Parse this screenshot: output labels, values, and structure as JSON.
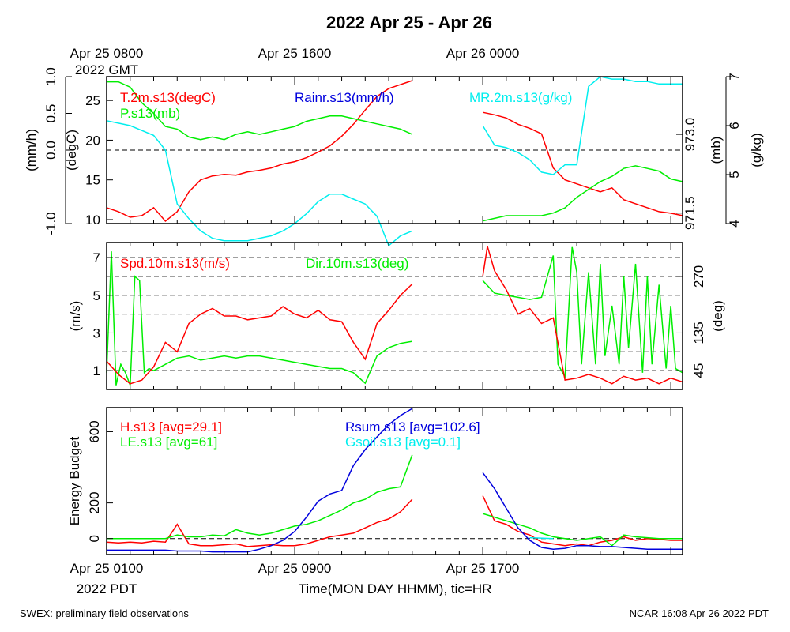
{
  "title": "2022 Apr 25 - Apr 26",
  "footer": {
    "left": "SWEX: preliminary field observations",
    "right": "NCAR 16:08 Apr 26 2022 PDT"
  },
  "colors": {
    "red": "#ff0000",
    "green": "#00ee00",
    "blue": "#0000dd",
    "cyan": "#00eeee",
    "black": "#000000"
  },
  "top_time_labels": [
    {
      "line1": "Apr 25 0800",
      "line2": "2022 GMT",
      "hour": 0
    },
    {
      "line1": "Apr 25 1600",
      "line2": "",
      "hour": 8
    },
    {
      "line1": "Apr 26 0000",
      "line2": "",
      "hour": 16
    }
  ],
  "bottom_time_labels": [
    {
      "line1": "Apr 25 0100",
      "line2": "2022 PDT",
      "hour": 0
    },
    {
      "line1": "Apr 25 0900",
      "line2": "",
      "hour": 8
    },
    {
      "line1": "Apr 25 1700",
      "line2": "",
      "hour": 16
    }
  ],
  "xlabel": "Time(MON DAY HHMM), tic=HR",
  "chart_data": [
    {
      "type": "line",
      "panel": "met",
      "xlim": [
        0,
        24.5
      ],
      "axes": {
        "rain": {
          "label": "(mm/h)",
          "ylim": [
            -1.0,
            1.0
          ],
          "ticks": [
            "-1.0",
            "0.0",
            "0.5",
            "1.0"
          ],
          "tick_values": [
            -1.0,
            0.0,
            0.5,
            1.0
          ]
        },
        "temp": {
          "label": "(degC)",
          "ylim": [
            9.5,
            28
          ],
          "ticks": [
            "10",
            "15",
            "20",
            "25"
          ],
          "tick_values": [
            10,
            15,
            20,
            25
          ]
        },
        "pres": {
          "label": "(mb)",
          "ylim": [
            971.3,
            974.1
          ],
          "ticks": [
            "971.5",
            "973.0"
          ],
          "tick_values": [
            971.5,
            973.0
          ]
        },
        "mr": {
          "label": "(g/kg)",
          "ylim": [
            4,
            7
          ],
          "ticks": [
            "4",
            "5",
            "6",
            "7"
          ],
          "tick_values": [
            4,
            5,
            6,
            7
          ]
        }
      },
      "series": [
        {
          "name": "T.2m.s13(degC)",
          "axis": "temp",
          "color": "#ff0000",
          "x": [
            0,
            0.5,
            1,
            1.5,
            2,
            2.5,
            3,
            3.5,
            4,
            4.5,
            5,
            5.5,
            6,
            6.5,
            7,
            7.5,
            8,
            8.5,
            9,
            9.5,
            10,
            10.5,
            11,
            11.5,
            12,
            12.5,
            13,
            16,
            16.5,
            17,
            17.5,
            18,
            18.5,
            19,
            19.5,
            20,
            20.5,
            21,
            21.5,
            22,
            22.5,
            23,
            23.5,
            24,
            24.5
          ],
          "y": [
            11.5,
            11,
            10.3,
            10.5,
            11.5,
            9.8,
            11,
            13.5,
            15,
            15.5,
            15.7,
            15.6,
            16,
            16.2,
            16.5,
            17,
            17.3,
            17.8,
            18.5,
            19.3,
            20.5,
            22,
            23.8,
            25.5,
            26.5,
            27,
            27.5,
            23.5,
            23.2,
            22.8,
            22,
            21.5,
            20.8,
            16.5,
            15,
            14.5,
            14,
            13.5,
            14,
            12.5,
            12,
            11.5,
            11,
            10.8,
            10.5
          ]
        },
        {
          "name": "P.s13(mb)",
          "axis": "pres",
          "color": "#00ee00",
          "x": [
            0,
            0.5,
            1,
            1.5,
            2,
            2.5,
            3,
            3.5,
            4,
            4.5,
            5,
            5.5,
            6,
            6.5,
            7,
            7.5,
            8,
            8.5,
            9,
            9.5,
            10,
            10.5,
            11,
            11.5,
            12,
            12.5,
            13,
            16,
            16.5,
            17,
            17.5,
            18,
            18.5,
            19,
            19.5,
            20,
            20.5,
            21,
            21.5,
            22,
            22.5,
            23,
            23.5,
            24,
            24.5
          ],
          "y": [
            974.0,
            974.0,
            973.9,
            973.6,
            973.4,
            973.15,
            973.1,
            972.95,
            972.9,
            972.95,
            972.9,
            973.0,
            973.05,
            973.0,
            973.05,
            973.1,
            973.15,
            973.25,
            973.3,
            973.35,
            973.35,
            973.3,
            973.25,
            973.2,
            973.15,
            973.1,
            973.0,
            971.35,
            971.4,
            971.45,
            971.45,
            971.45,
            971.45,
            971.5,
            971.6,
            971.8,
            971.95,
            972.1,
            972.2,
            972.35,
            972.4,
            972.35,
            972.3,
            972.15,
            972.1
          ]
        },
        {
          "name": "Rainr.s13(mm/h)",
          "axis": "rain",
          "color": "#0000dd",
          "x": [
            0,
            13,
            16,
            24.5
          ],
          "y": [
            0,
            0,
            0,
            0
          ]
        },
        {
          "name": "MR.2m.s13(g/kg)",
          "axis": "mr",
          "color": "#00eeee",
          "x": [
            0,
            0.5,
            1,
            1.5,
            2,
            2.5,
            3,
            3.5,
            4,
            4.5,
            5,
            5.5,
            6,
            6.5,
            7,
            7.5,
            8,
            8.5,
            9,
            9.5,
            10,
            10.5,
            11,
            11.5,
            12,
            12.5,
            13,
            16,
            16.5,
            17,
            17.5,
            18,
            18.5,
            19,
            19.5,
            20,
            20.5,
            21,
            21.5,
            22,
            22.5,
            23,
            23.5,
            24,
            24.5
          ],
          "y": [
            6.1,
            6.05,
            6.0,
            5.9,
            5.8,
            5.5,
            4.4,
            4.1,
            3.85,
            3.7,
            3.65,
            3.65,
            3.65,
            3.7,
            3.75,
            3.85,
            4.0,
            4.2,
            4.45,
            4.6,
            4.6,
            4.5,
            4.4,
            4.15,
            3.55,
            3.75,
            3.85,
            6.0,
            5.6,
            5.55,
            5.45,
            5.3,
            5.05,
            5.0,
            5.2,
            5.2,
            6.8,
            7.0,
            6.95,
            6.95,
            6.9,
            6.9,
            6.85,
            6.85,
            6.85
          ]
        }
      ]
    },
    {
      "type": "line",
      "panel": "wind",
      "xlim": [
        0,
        24.5
      ],
      "axes": {
        "spd": {
          "label": "(m/s)",
          "ylim": [
            0,
            7.8
          ],
          "ticks": [
            "1",
            "3",
            "5",
            "7"
          ],
          "tick_values": [
            1,
            3,
            5,
            7
          ]
        },
        "dir": {
          "label": "(deg)",
          "ylim": [
            0,
            351
          ],
          "ticks": [
            "45",
            "135",
            "270"
          ],
          "tick_values": [
            45,
            135,
            270
          ]
        }
      },
      "series": [
        {
          "name": "Spd.10m.s13(m/s)",
          "axis": "spd",
          "color": "#ff0000",
          "x": [
            0,
            0.5,
            1,
            1.5,
            2,
            2.5,
            3,
            3.5,
            4,
            4.5,
            5,
            5.5,
            6,
            6.5,
            7,
            7.5,
            8,
            8.5,
            9,
            9.5,
            10,
            10.5,
            11,
            11.5,
            12,
            12.5,
            13,
            16,
            16.2,
            16.5,
            17,
            17.5,
            18,
            18.5,
            19,
            19.5,
            20,
            20.5,
            21,
            21.5,
            22,
            22.5,
            23,
            23.5,
            24,
            24.5
          ],
          "y": [
            1.5,
            0.8,
            0.3,
            0.5,
            1.2,
            2.5,
            2.0,
            3.5,
            4.0,
            4.3,
            3.9,
            3.9,
            3.7,
            3.8,
            3.9,
            4.4,
            4.0,
            3.8,
            4.2,
            3.7,
            3.6,
            2.5,
            1.6,
            3.5,
            4.2,
            5.0,
            5.6,
            6.0,
            7.6,
            6.3,
            5.3,
            4.0,
            4.3,
            3.5,
            3.8,
            0.5,
            0.6,
            0.8,
            0.6,
            0.3,
            0.7,
            0.5,
            0.6,
            0.3,
            0.6,
            0.4
          ]
        },
        {
          "name": "Dir.10m.s13(deg)",
          "axis": "dir",
          "color": "#00ee00",
          "x": [
            0,
            0.2,
            0.4,
            0.6,
            0.8,
            1.0,
            1.2,
            1.4,
            1.6,
            1.8,
            2,
            2.5,
            3,
            3.5,
            4,
            4.5,
            5,
            5.5,
            6,
            6.5,
            7,
            7.5,
            8,
            8.5,
            9,
            9.5,
            10,
            10.5,
            11,
            11.5,
            12,
            12.5,
            13,
            16,
            16.5,
            17,
            17.5,
            18,
            18.5,
            19,
            19.2,
            19.5,
            19.8,
            20,
            20.2,
            20.5,
            20.8,
            21,
            21.2,
            21.5,
            21.8,
            22,
            22.2,
            22.5,
            22.8,
            23,
            23.2,
            23.5,
            23.8,
            24,
            24.2,
            24.5
          ],
          "y": [
            40,
            330,
            10,
            60,
            40,
            10,
            270,
            260,
            40,
            50,
            45,
            60,
            75,
            80,
            70,
            75,
            80,
            75,
            80,
            80,
            75,
            70,
            65,
            60,
            55,
            50,
            50,
            40,
            15,
            80,
            100,
            110,
            115,
            260,
            230,
            225,
            220,
            215,
            220,
            320,
            60,
            30,
            340,
            280,
            60,
            280,
            60,
            300,
            80,
            200,
            60,
            270,
            100,
            300,
            40,
            270,
            60,
            250,
            50,
            200,
            50,
            40
          ]
        }
      ]
    },
    {
      "type": "line",
      "panel": "energy",
      "xlim": [
        0,
        24.5
      ],
      "ylabel": "Energy Budget",
      "ylim": [
        -90,
        735
      ],
      "ticks": [
        "0",
        "200",
        "600"
      ],
      "tick_values": [
        0,
        200,
        600
      ],
      "series": [
        {
          "name": "H.s13",
          "legend": "H.s13 [avg=29.1]",
          "color": "#ff0000",
          "x": [
            0,
            0.5,
            1,
            1.5,
            2,
            2.5,
            3,
            3.5,
            4,
            4.5,
            5,
            5.5,
            6,
            6.5,
            7,
            7.5,
            8,
            8.5,
            9,
            9.5,
            10,
            10.5,
            11,
            11.5,
            12,
            12.5,
            13,
            16,
            16.5,
            17,
            17.5,
            18,
            18.5,
            19,
            19.5,
            20,
            20.5,
            21,
            21.5,
            22,
            22.5,
            23,
            23.5,
            24,
            24.5
          ],
          "y": [
            -20,
            -25,
            -20,
            -25,
            -15,
            -20,
            80,
            -30,
            -40,
            -40,
            -35,
            -30,
            -45,
            -40,
            -35,
            -40,
            -40,
            -30,
            -10,
            10,
            20,
            30,
            60,
            90,
            110,
            150,
            220,
            240,
            100,
            80,
            40,
            20,
            -20,
            -30,
            -40,
            -30,
            -40,
            -20,
            -10,
            10,
            -10,
            0,
            -5,
            -10,
            -10
          ]
        },
        {
          "name": "LE.s13",
          "legend": "LE.s13 [avg=61]",
          "color": "#00ee00",
          "x": [
            0,
            0.5,
            1,
            1.5,
            2,
            2.5,
            3,
            3.5,
            4,
            4.5,
            5,
            5.5,
            6,
            6.5,
            7,
            7.5,
            8,
            8.5,
            9,
            9.5,
            10,
            10.5,
            11,
            11.5,
            12,
            12.5,
            13,
            16,
            16.5,
            17,
            17.5,
            18,
            18.5,
            19,
            19.5,
            20,
            20.5,
            21,
            21.5,
            22,
            22.5,
            23,
            23.5,
            24,
            24.5
          ],
          "y": [
            0,
            0,
            0,
            0,
            0,
            0,
            20,
            10,
            10,
            20,
            15,
            50,
            30,
            20,
            30,
            50,
            70,
            80,
            100,
            130,
            160,
            200,
            220,
            260,
            280,
            290,
            470,
            140,
            120,
            100,
            80,
            60,
            30,
            10,
            0,
            -10,
            0,
            10,
            -40,
            20,
            10,
            5,
            0,
            0,
            0
          ]
        },
        {
          "name": "Rsum.s13",
          "legend": "Rsum.s13 [avg=102.6]",
          "color": "#0000dd",
          "x": [
            0,
            0.5,
            1,
            1.5,
            2,
            2.5,
            3,
            3.5,
            4,
            4.5,
            5,
            5.5,
            6,
            6.5,
            7,
            7.5,
            8,
            8.5,
            9,
            9.5,
            10,
            10.5,
            11,
            11.5,
            12,
            12.5,
            13,
            16,
            16.5,
            17,
            17.5,
            18,
            18.5,
            19,
            19.5,
            20,
            20.5,
            21,
            21.5,
            22,
            22.5,
            23,
            23.5,
            24,
            24.5
          ],
          "y": [
            -65,
            -65,
            -65,
            -65,
            -65,
            -65,
            -70,
            -70,
            -70,
            -75,
            -75,
            -75,
            -75,
            -60,
            -40,
            -10,
            40,
            120,
            210,
            250,
            270,
            410,
            500,
            570,
            640,
            690,
            730,
            370,
            280,
            170,
            60,
            -10,
            -50,
            -60,
            -55,
            -40,
            -40,
            -45,
            -45,
            -50,
            -55,
            -60,
            -60,
            -60,
            -60
          ]
        },
        {
          "name": "Gsoil.s13",
          "legend": "Gsoil.s13 [avg=0.1]",
          "color": "#00eeee",
          "x": [
            0,
            13,
            16,
            18,
            19,
            24.5
          ],
          "y": [
            0,
            3,
            3,
            5,
            0,
            0
          ]
        }
      ]
    }
  ]
}
